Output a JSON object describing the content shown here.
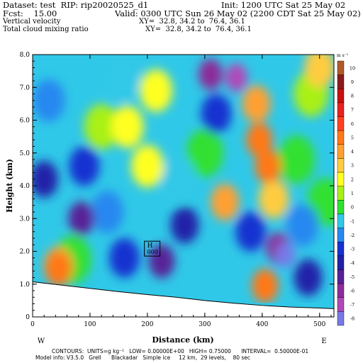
{
  "header": {
    "dataset_line": "Dataset: test  RIP: rip20020525_d1",
    "init_line": "Init: 1200 UTC Sat 25 May 02",
    "fcst_line": "Fcst:    15.00",
    "valid_line": "Valid: 0300 UTC Sun 26 May 02 (2200 CDT Sat 25 May 02)",
    "field1_name": "Vertical velocity",
    "field1_xy": "XY=  32.8, 34.2 to  76.4, 36.1",
    "field2_name": "Total cloud mixing ratio",
    "field2_xy": "XY=  32.8, 34.2 to  76.4, 36.1"
  },
  "footer": {
    "contours_line": "CONTOURS:  UNITS=g kg⁻¹   LOW= 0.00000E+00   HIGH= 0.75000      INTERVAL=  0.50000E-01",
    "model_line": "Model info: V3.5.0   Grell      Blackadar   Simple ice     12 km,  29 levels,    80 sec"
  },
  "colors": {
    "ground": "#ffffff",
    "frame": "#000000"
  },
  "chart_data": {
    "type": "heatmap",
    "xlabel": "Distance (km)",
    "ylabel": "Height (km)",
    "xlim": [
      0,
      525
    ],
    "ylim": [
      0,
      8
    ],
    "x_ticks": [
      "0",
      "100",
      "200",
      "300",
      "400",
      "500"
    ],
    "x_tick_values": [
      0,
      100,
      200,
      300,
      400,
      500
    ],
    "y_ticks": [
      "0",
      "1.0",
      "2.0",
      "3.0",
      "4.0",
      "5.0",
      "6.0",
      "7.0",
      "8.0"
    ],
    "y_tick_values": [
      0,
      1,
      2,
      3,
      4,
      5,
      6,
      7,
      8
    ],
    "left_endpoint_label": "W",
    "right_endpoint_label": "E",
    "terrain": [
      [
        0,
        1.07
      ],
      [
        50,
        0.97
      ],
      [
        100,
        0.87
      ],
      [
        150,
        0.77
      ],
      [
        200,
        0.68
      ],
      [
        250,
        0.6
      ],
      [
        300,
        0.5
      ],
      [
        350,
        0.42
      ],
      [
        400,
        0.35
      ],
      [
        450,
        0.3
      ],
      [
        500,
        0.27
      ],
      [
        525,
        0.25
      ]
    ],
    "colorbar": {
      "units_label": "m s⁻¹",
      "levels": [
        {
          "label": "10",
          "color": "#b05a2a"
        },
        {
          "label": "9",
          "color": "#8b1a1a"
        },
        {
          "label": "8",
          "color": "#c81010"
        },
        {
          "label": "7",
          "color": "#e82020"
        },
        {
          "label": "6",
          "color": "#ff4020"
        },
        {
          "label": "5",
          "color": "#ff7818"
        },
        {
          "label": "4",
          "color": "#ffa030"
        },
        {
          "label": "3",
          "color": "#ffcc40"
        },
        {
          "label": "2",
          "color": "#ffff20"
        },
        {
          "label": "1",
          "color": "#a8f018"
        },
        {
          "label": "0",
          "color": "#30e030"
        },
        {
          "label": "-1",
          "color": "#30c8e8"
        },
        {
          "label": "-2",
          "color": "#2888f0"
        },
        {
          "label": "-3",
          "color": "#1830d0"
        },
        {
          "label": "-4",
          "color": "#2020a8"
        },
        {
          "label": "-5",
          "color": "#582098"
        },
        {
          "label": "-6",
          "color": "#8c2c98"
        },
        {
          "label": "-7",
          "color": "#b048b8"
        },
        {
          "label": "-8",
          "color": "#7878e8"
        }
      ]
    },
    "field_features": [
      {
        "x": 45,
        "z": 1.55,
        "value": 3.5
      },
      {
        "x": 45,
        "z": 1.45,
        "value": 5
      },
      {
        "x": 70,
        "z": 1.75,
        "value": 0
      },
      {
        "x": 20,
        "z": 4.2,
        "value": -4
      },
      {
        "x": 28,
        "z": 6.6,
        "value": -2
      },
      {
        "x": 120,
        "z": 5.8,
        "value": 1
      },
      {
        "x": 155,
        "z": 7.3,
        "value": -1
      },
      {
        "x": 90,
        "z": 4.6,
        "value": -3
      },
      {
        "x": 85,
        "z": 3.0,
        "value": -5
      },
      {
        "x": 130,
        "z": 3.2,
        "value": -2
      },
      {
        "x": 165,
        "z": 5.8,
        "value": 2
      },
      {
        "x": 215,
        "z": 6.9,
        "value": 2
      },
      {
        "x": 200,
        "z": 4.6,
        "value": 2
      },
      {
        "x": 255,
        "z": 4.2,
        "value": -1
      },
      {
        "x": 310,
        "z": 7.4,
        "value": -6
      },
      {
        "x": 355,
        "z": 7.3,
        "value": -7
      },
      {
        "x": 320,
        "z": 6.2,
        "value": -3
      },
      {
        "x": 300,
        "z": 5.0,
        "value": 0
      },
      {
        "x": 335,
        "z": 3.5,
        "value": 4
      },
      {
        "x": 390,
        "z": 6.5,
        "value": 4
      },
      {
        "x": 395,
        "z": 5.4,
        "value": 5
      },
      {
        "x": 410,
        "z": 4.6,
        "value": 5
      },
      {
        "x": 420,
        "z": 3.6,
        "value": 3
      },
      {
        "x": 460,
        "z": 4.8,
        "value": 0
      },
      {
        "x": 485,
        "z": 6.8,
        "value": 1
      },
      {
        "x": 500,
        "z": 7.6,
        "value": 3
      },
      {
        "x": 440,
        "z": 1.9,
        "value": -8
      },
      {
        "x": 428,
        "z": 2.1,
        "value": -6
      },
      {
        "x": 470,
        "z": 2.8,
        "value": -2
      },
      {
        "x": 405,
        "z": 0.95,
        "value": 5
      },
      {
        "x": 380,
        "z": 2.6,
        "value": -3
      },
      {
        "x": 265,
        "z": 2.8,
        "value": -4
      },
      {
        "x": 225,
        "z": 1.7,
        "value": -5
      },
      {
        "x": 160,
        "z": 1.8,
        "value": -3
      },
      {
        "x": 480,
        "z": 1.2,
        "value": -4
      },
      {
        "x": 510,
        "z": 3.5,
        "value": 0
      }
    ],
    "annotations": [
      {
        "label": "H",
        "value_label": "000",
        "x": 196,
        "z": 2.05
      }
    ]
  }
}
